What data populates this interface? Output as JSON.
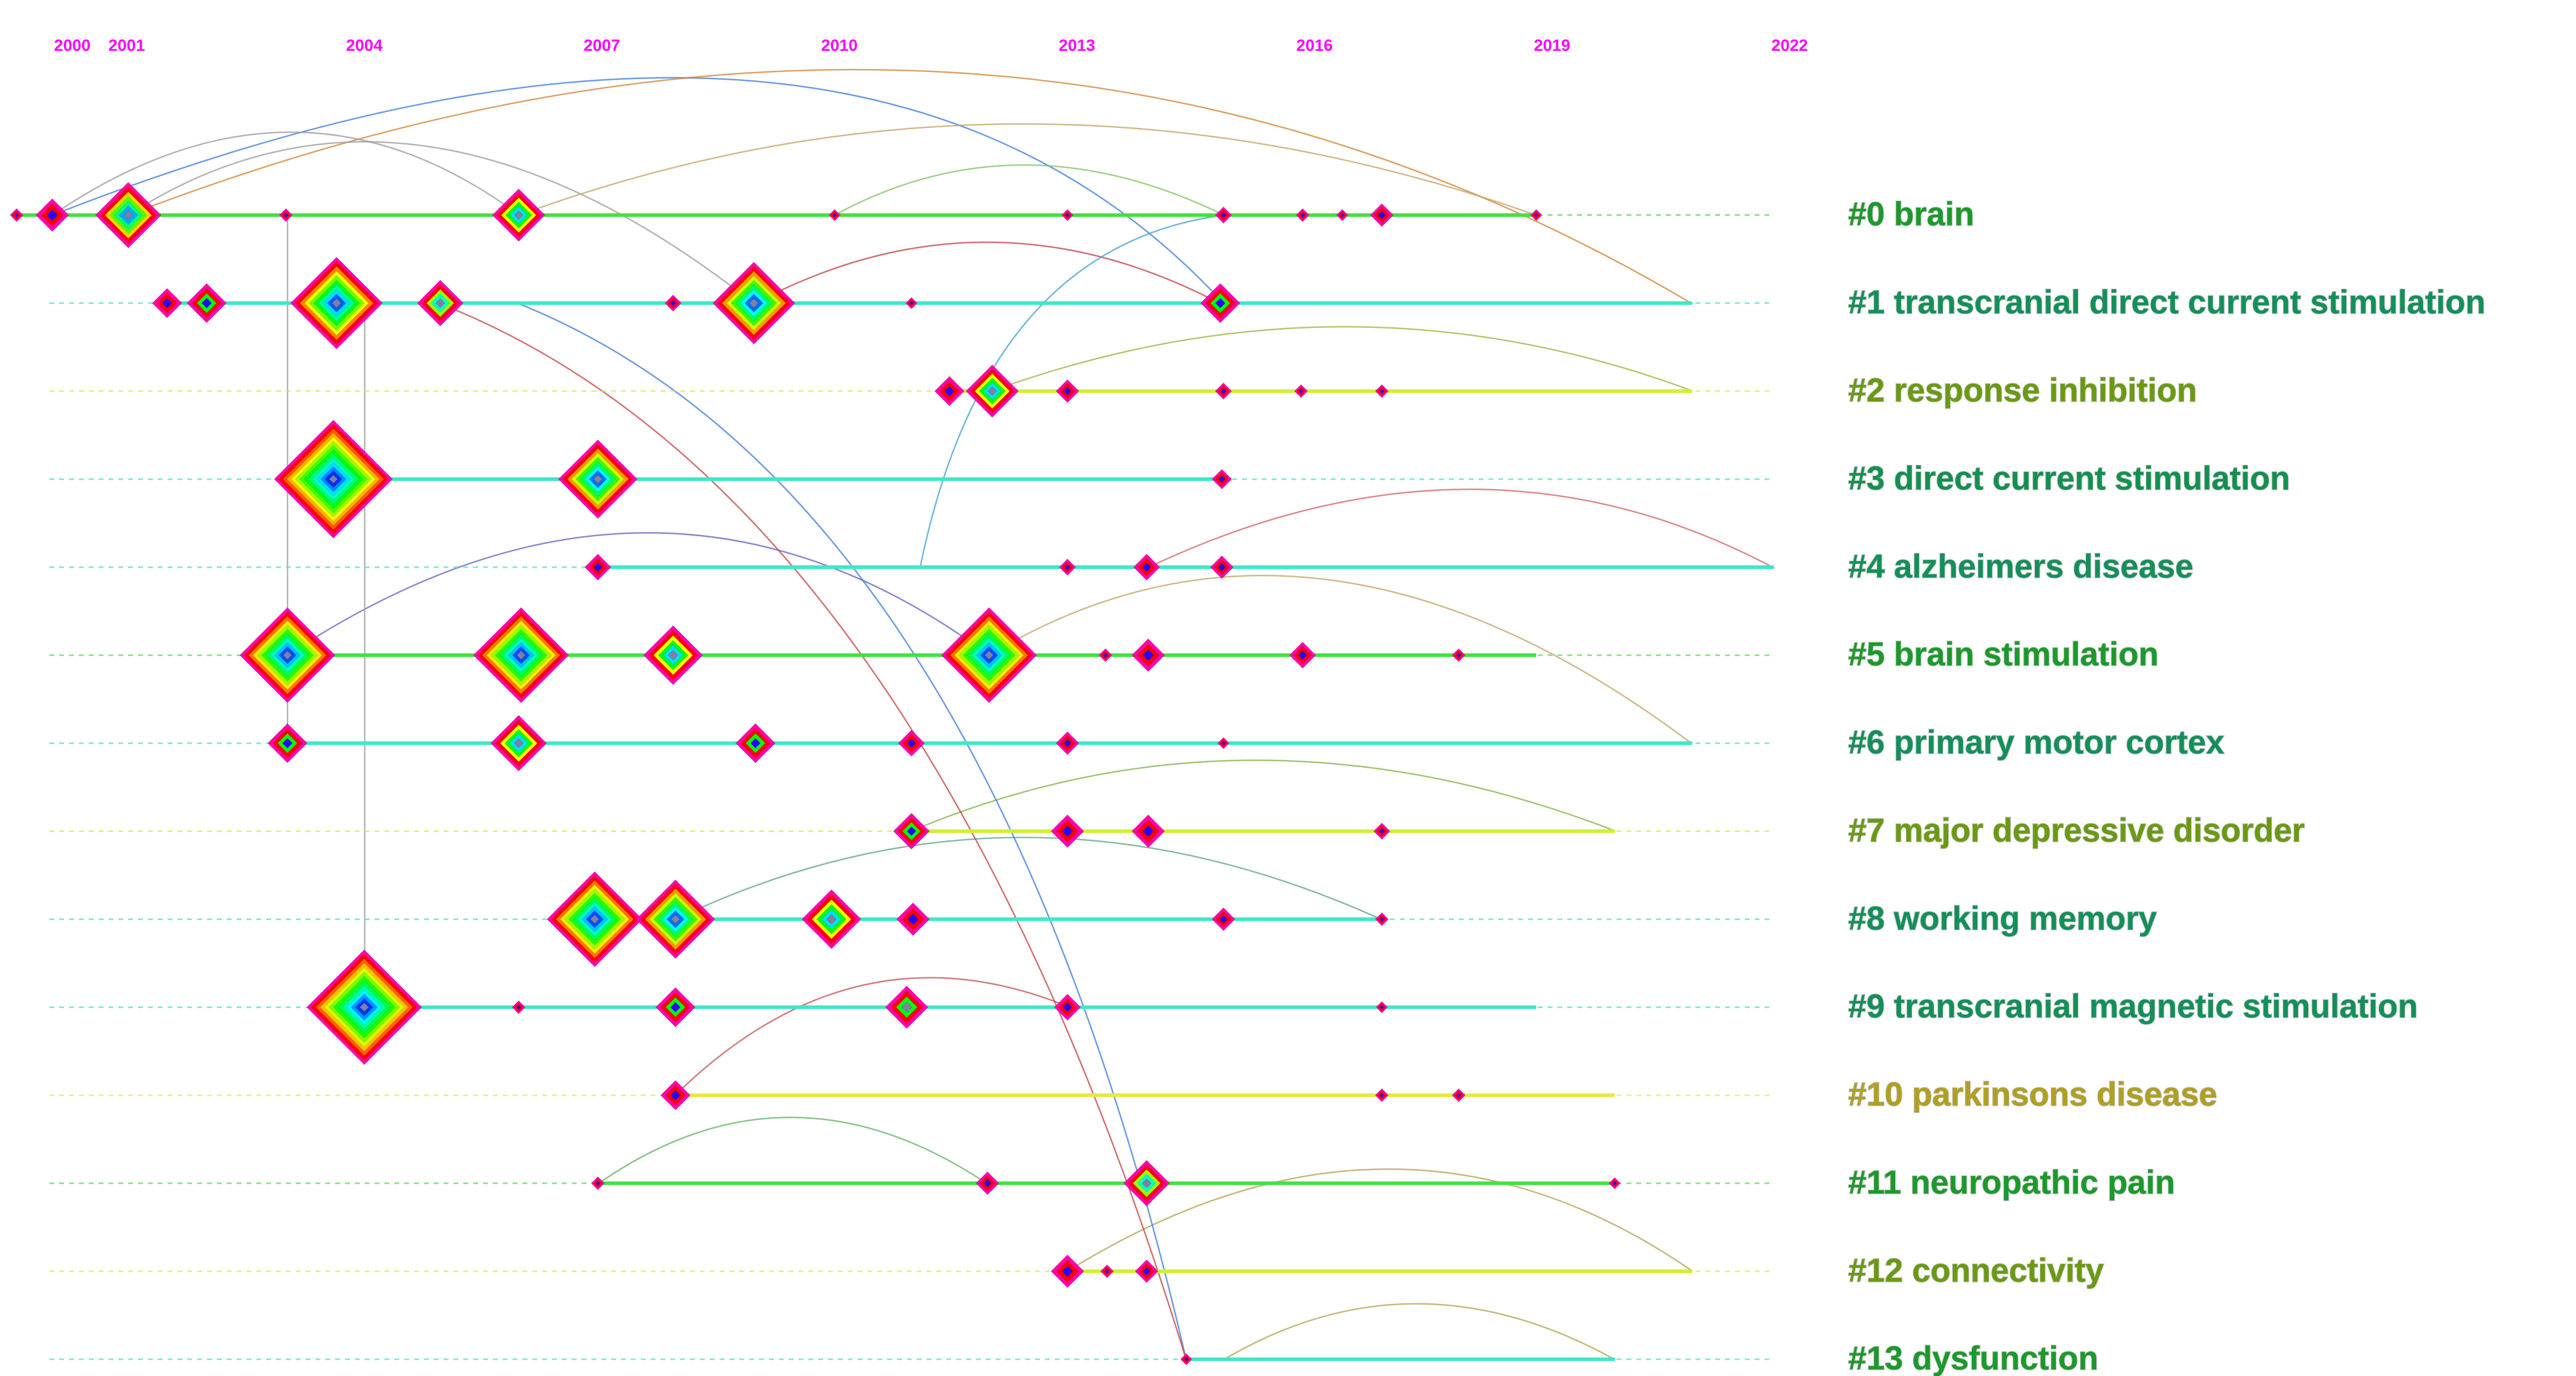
{
  "chart_data": {
    "type": "timeline",
    "xlim": [
      1999.4,
      2022.2
    ],
    "xticks": [
      2000,
      2001,
      2004,
      2007,
      2010,
      2013,
      2016,
      2019,
      2022
    ],
    "clusters": [
      {
        "label": "#0 brain",
        "color": "#1a9a2a",
        "line_color": "#44e044",
        "end": 2018.8
      },
      {
        "label": "#1 transcranial direct current stimulation",
        "color": "#12905a",
        "line_color": "#3de8c8",
        "end": 2020.77
      },
      {
        "label": "#2 response inhibition",
        "color": "#6a9a10",
        "line_color": "#d0f030",
        "end": 2020.77
      },
      {
        "label": "#3 direct current stimulation",
        "color": "#129050",
        "line_color": "#3de8c8",
        "end": 2014.85
      },
      {
        "label": "#4 alzheimers disease",
        "color": "#12905a",
        "line_color": "#3de8c8",
        "end": 2021.8
      },
      {
        "label": "#5 brain stimulation",
        "color": "#1a9a2a",
        "line_color": "#44e044",
        "end": 2018.8
      },
      {
        "label": "#6 primary motor cortex",
        "color": "#12905a",
        "line_color": "#3de8c8",
        "end": 2020.77
      },
      {
        "label": "#7 major depressive disorder",
        "color": "#6a9a10",
        "line_color": "#d0f030",
        "end": 2019.79
      },
      {
        "label": "#8 working memory",
        "color": "#12905a",
        "line_color": "#3de8c8",
        "end": 2016.85
      },
      {
        "label": "#9 transcranial magnetic stimulation",
        "color": "#12905a",
        "line_color": "#3de8c8",
        "end": 2018.8
      },
      {
        "label": "#10 parkinsons disease",
        "color": "#b0a020",
        "line_color": "#e8e840",
        "end": 2019.79
      },
      {
        "label": "#11 neuropathic pain",
        "color": "#1a9a2a",
        "line_color": "#44e044",
        "end": 2019.79
      },
      {
        "label": "#12 connectivity",
        "color": "#6a9a10",
        "line_color": "#d0f030",
        "end": 2020.77
      },
      {
        "label": "#13 dysfunction",
        "color": "#1a9a2a",
        "line_color": "#3de8c8",
        "end": 2019.79
      }
    ],
    "nodes": [
      {
        "cluster": 0,
        "year": 1999.61,
        "size": 4
      },
      {
        "cluster": 0,
        "year": 2000.06,
        "size": 16
      },
      {
        "cluster": 0,
        "year": 2001.02,
        "size": 36
      },
      {
        "cluster": 0,
        "year": 2003.01,
        "size": 4
      },
      {
        "cluster": 0,
        "year": 2005.95,
        "size": 28
      },
      {
        "cluster": 0,
        "year": 2009.94,
        "size": 3
      },
      {
        "cluster": 0,
        "year": 2012.88,
        "size": 3
      },
      {
        "cluster": 0,
        "year": 2014.85,
        "size": 6
      },
      {
        "cluster": 0,
        "year": 2015.85,
        "size": 4
      },
      {
        "cluster": 0,
        "year": 2016.35,
        "size": 3
      },
      {
        "cluster": 0,
        "year": 2016.85,
        "size": 10
      },
      {
        "cluster": 0,
        "year": 2018.8,
        "size": 3
      },
      {
        "cluster": 1,
        "year": 2001.51,
        "size": 14
      },
      {
        "cluster": 1,
        "year": 2002.01,
        "size": 20
      },
      {
        "cluster": 1,
        "year": 2003.65,
        "size": 52
      },
      {
        "cluster": 1,
        "year": 2004.96,
        "size": 24
      },
      {
        "cluster": 1,
        "year": 2007.9,
        "size": 6
      },
      {
        "cluster": 1,
        "year": 2008.92,
        "size": 46
      },
      {
        "cluster": 1,
        "year": 2010.91,
        "size": 3
      },
      {
        "cluster": 1,
        "year": 2014.81,
        "size": 20
      },
      {
        "cluster": 2,
        "year": 2011.39,
        "size": 14
      },
      {
        "cluster": 2,
        "year": 2011.93,
        "size": 28
      },
      {
        "cluster": 2,
        "year": 2012.88,
        "size": 10
      },
      {
        "cluster": 2,
        "year": 2014.85,
        "size": 6
      },
      {
        "cluster": 2,
        "year": 2015.83,
        "size": 4
      },
      {
        "cluster": 2,
        "year": 2016.85,
        "size": 4
      },
      {
        "cluster": 3,
        "year": 2003.61,
        "size": 68
      },
      {
        "cluster": 3,
        "year": 2006.95,
        "size": 44
      },
      {
        "cluster": 3,
        "year": 2014.83,
        "size": 8
      },
      {
        "cluster": 4,
        "year": 2006.95,
        "size": 12
      },
      {
        "cluster": 4,
        "year": 2012.88,
        "size": 6
      },
      {
        "cluster": 4,
        "year": 2013.88,
        "size": 12
      },
      {
        "cluster": 4,
        "year": 2014.83,
        "size": 10
      },
      {
        "cluster": 5,
        "year": 2003.03,
        "size": 54
      },
      {
        "cluster": 5,
        "year": 2005.98,
        "size": 54
      },
      {
        "cluster": 5,
        "year": 2007.9,
        "size": 32
      },
      {
        "cluster": 5,
        "year": 2011.89,
        "size": 54
      },
      {
        "cluster": 5,
        "year": 2013.36,
        "size": 4
      },
      {
        "cluster": 5,
        "year": 2013.9,
        "size": 16
      },
      {
        "cluster": 5,
        "year": 2015.85,
        "size": 12
      },
      {
        "cluster": 5,
        "year": 2017.82,
        "size": 4
      },
      {
        "cluster": 6,
        "year": 2003.03,
        "size": 20
      },
      {
        "cluster": 6,
        "year": 2005.95,
        "size": 30
      },
      {
        "cluster": 6,
        "year": 2008.94,
        "size": 20
      },
      {
        "cluster": 6,
        "year": 2010.91,
        "size": 12
      },
      {
        "cluster": 6,
        "year": 2012.88,
        "size": 10
      },
      {
        "cluster": 6,
        "year": 2014.85,
        "size": 3
      },
      {
        "cluster": 7,
        "year": 2010.91,
        "size": 18
      },
      {
        "cluster": 7,
        "year": 2012.88,
        "size": 16
      },
      {
        "cluster": 7,
        "year": 2013.9,
        "size": 16
      },
      {
        "cluster": 7,
        "year": 2016.85,
        "size": 6
      },
      {
        "cluster": 8,
        "year": 2006.91,
        "size": 54
      },
      {
        "cluster": 8,
        "year": 2007.93,
        "size": 44
      },
      {
        "cluster": 8,
        "year": 2009.9,
        "size": 32
      },
      {
        "cluster": 8,
        "year": 2010.93,
        "size": 16
      },
      {
        "cluster": 8,
        "year": 2014.85,
        "size": 10
      },
      {
        "cluster": 8,
        "year": 2016.85,
        "size": 4
      },
      {
        "cluster": 9,
        "year": 2004.0,
        "size": 66
      },
      {
        "cluster": 9,
        "year": 2005.95,
        "size": 4
      },
      {
        "cluster": 9,
        "year": 2007.93,
        "size": 20
      },
      {
        "cluster": 9,
        "year": 2010.85,
        "size": 22
      },
      {
        "cluster": 9,
        "year": 2012.88,
        "size": 12
      },
      {
        "cluster": 9,
        "year": 2016.85,
        "size": 3
      },
      {
        "cluster": 10,
        "year": 2007.93,
        "size": 14
      },
      {
        "cluster": 10,
        "year": 2016.85,
        "size": 4
      },
      {
        "cluster": 10,
        "year": 2017.82,
        "size": 4
      },
      {
        "cluster": 11,
        "year": 2006.95,
        "size": 4
      },
      {
        "cluster": 11,
        "year": 2011.87,
        "size": 10
      },
      {
        "cluster": 11,
        "year": 2013.88,
        "size": 24
      },
      {
        "cluster": 11,
        "year": 2019.79,
        "size": 3
      },
      {
        "cluster": 12,
        "year": 2012.88,
        "size": 16
      },
      {
        "cluster": 12,
        "year": 2013.38,
        "size": 4
      },
      {
        "cluster": 12,
        "year": 2013.88,
        "size": 10
      },
      {
        "cluster": 13,
        "year": 2014.38,
        "size": 3
      }
    ]
  }
}
